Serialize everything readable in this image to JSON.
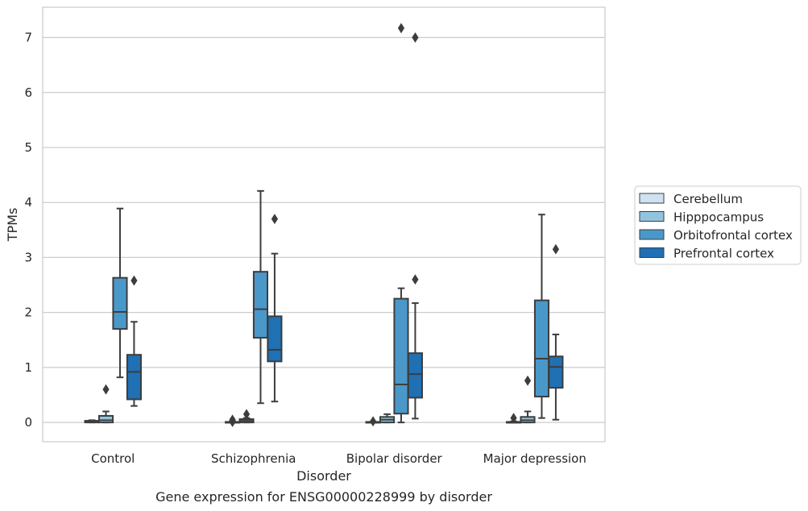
{
  "chart_data": {
    "type": "box",
    "title": "",
    "caption": "Gene expression for ENSG00000228999 by disorder",
    "xlabel": "Disorder",
    "ylabel": "TPMs",
    "ylim": [
      -0.35,
      7.55
    ],
    "yticks": [
      0,
      1,
      2,
      3,
      4,
      5,
      6,
      7
    ],
    "grid": "horizontal",
    "legend_position": "right",
    "categories": [
      "Control",
      "Schizophrenia",
      "Bipolar disorder",
      "Major depression"
    ],
    "series": [
      {
        "name": "Cerebellum",
        "color": "#cfe1f2",
        "boxes": [
          {
            "category": "Control",
            "whisker_low": 0.0,
            "q1": 0.0,
            "median": 0.01,
            "q3": 0.03,
            "whisker_high": 0.04,
            "outliers": []
          },
          {
            "category": "Schizophrenia",
            "whisker_low": 0.0,
            "q1": 0.0,
            "median": 0.0,
            "q3": 0.01,
            "whisker_high": 0.02,
            "outliers": [
              0.05,
              0.01
            ]
          },
          {
            "category": "Bipolar disorder",
            "whisker_low": 0.0,
            "q1": 0.0,
            "median": 0.0,
            "q3": 0.01,
            "whisker_high": 0.01,
            "outliers": [
              0.02
            ]
          },
          {
            "category": "Major depression",
            "whisker_low": 0.0,
            "q1": 0.0,
            "median": 0.0,
            "q3": 0.01,
            "whisker_high": 0.02,
            "outliers": [
              0.08
            ]
          }
        ]
      },
      {
        "name": "Hipppocampus",
        "color": "#93c4de",
        "boxes": [
          {
            "category": "Control",
            "whisker_low": 0.0,
            "q1": 0.0,
            "median": 0.04,
            "q3": 0.12,
            "whisker_high": 0.2,
            "outliers": [
              0.6
            ]
          },
          {
            "category": "Schizophrenia",
            "whisker_low": 0.0,
            "q1": 0.0,
            "median": 0.03,
            "q3": 0.06,
            "whisker_high": 0.08,
            "outliers": [
              0.15
            ]
          },
          {
            "category": "Bipolar disorder",
            "whisker_low": 0.0,
            "q1": 0.0,
            "median": 0.05,
            "q3": 0.1,
            "whisker_high": 0.15,
            "outliers": []
          },
          {
            "category": "Major depression",
            "whisker_low": 0.0,
            "q1": 0.0,
            "median": 0.04,
            "q3": 0.1,
            "whisker_high": 0.2,
            "outliers": [
              0.76
            ]
          }
        ]
      },
      {
        "name": "Orbitofrontal cortex",
        "color": "#4a98c9",
        "boxes": [
          {
            "category": "Control",
            "whisker_low": 0.82,
            "q1": 1.7,
            "median": 2.01,
            "q3": 2.63,
            "whisker_high": 3.89,
            "outliers": []
          },
          {
            "category": "Schizophrenia",
            "whisker_low": 0.35,
            "q1": 1.54,
            "median": 2.06,
            "q3": 2.74,
            "whisker_high": 4.21,
            "outliers": []
          },
          {
            "category": "Bipolar disorder",
            "whisker_low": 0.0,
            "q1": 0.16,
            "median": 0.69,
            "q3": 2.25,
            "whisker_high": 2.44,
            "outliers": [
              7.17
            ]
          },
          {
            "category": "Major depression",
            "whisker_low": 0.08,
            "q1": 0.47,
            "median": 1.16,
            "q3": 2.22,
            "whisker_high": 3.78,
            "outliers": []
          }
        ]
      },
      {
        "name": "Prefrontal cortex",
        "color": "#2070b4",
        "boxes": [
          {
            "category": "Control",
            "whisker_low": 0.3,
            "q1": 0.42,
            "median": 0.92,
            "q3": 1.23,
            "whisker_high": 1.83,
            "outliers": [
              2.58
            ]
          },
          {
            "category": "Schizophrenia",
            "whisker_low": 0.38,
            "q1": 1.11,
            "median": 1.32,
            "q3": 1.93,
            "whisker_high": 3.07,
            "outliers": [
              3.7
            ]
          },
          {
            "category": "Bipolar disorder",
            "whisker_low": 0.07,
            "q1": 0.45,
            "median": 0.88,
            "q3": 1.26,
            "whisker_high": 2.17,
            "outliers": [
              2.6,
              7.0
            ]
          },
          {
            "category": "Major depression",
            "whisker_low": 0.05,
            "q1": 0.63,
            "median": 1.01,
            "q3": 1.2,
            "whisker_high": 1.6,
            "outliers": [
              3.15
            ]
          }
        ]
      }
    ]
  }
}
